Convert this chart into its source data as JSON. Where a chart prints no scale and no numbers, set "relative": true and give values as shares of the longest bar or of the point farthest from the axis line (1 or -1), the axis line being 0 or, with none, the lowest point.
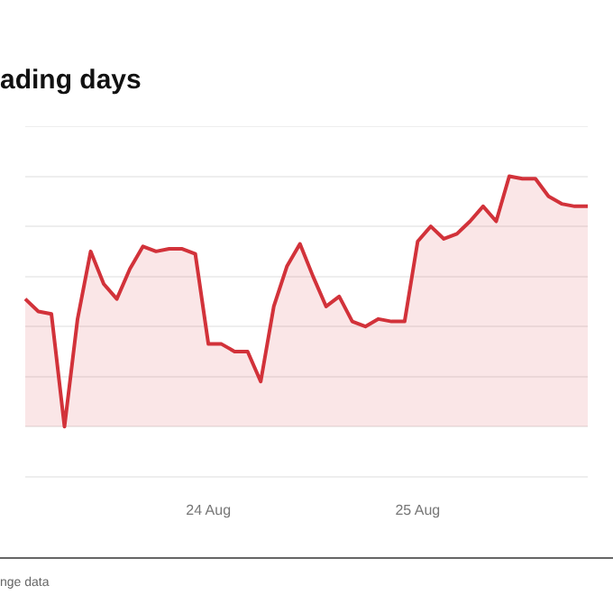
{
  "chart_data": {
    "type": "area",
    "title": "ading days",
    "relative": true,
    "grid": "y",
    "categories": [
      null,
      null,
      null,
      null,
      null,
      null,
      null,
      null,
      null,
      null,
      null,
      null,
      null,
      null,
      "24 Aug",
      null,
      null,
      null,
      null,
      null,
      null,
      null,
      null,
      null,
      null,
      null,
      null,
      null,
      null,
      null,
      "25 Aug",
      null,
      null,
      null,
      null,
      null,
      null,
      null,
      null,
      null,
      null,
      null,
      null,
      null
    ],
    "series": [
      {
        "color": "#d2323a",
        "values": [
          0.51,
          0.46,
          0.45,
          0,
          0.43,
          0.7,
          0.57,
          0.51,
          0.63,
          0.72,
          0.7,
          0.71,
          0.71,
          0.69,
          0.33,
          0.33,
          0.3,
          0.3,
          0.18,
          0.48,
          0.64,
          0.73,
          0.6,
          0.48,
          0.52,
          0.42,
          0.4,
          0.43,
          0.42,
          0.42,
          0.74,
          0.8,
          0.75,
          0.77,
          0.82,
          0.88,
          0.82,
          1,
          0.99,
          0.99,
          0.92,
          0.89,
          0.88,
          0.88
        ]
      }
    ],
    "annotations": [
      "nge data"
    ]
  }
}
